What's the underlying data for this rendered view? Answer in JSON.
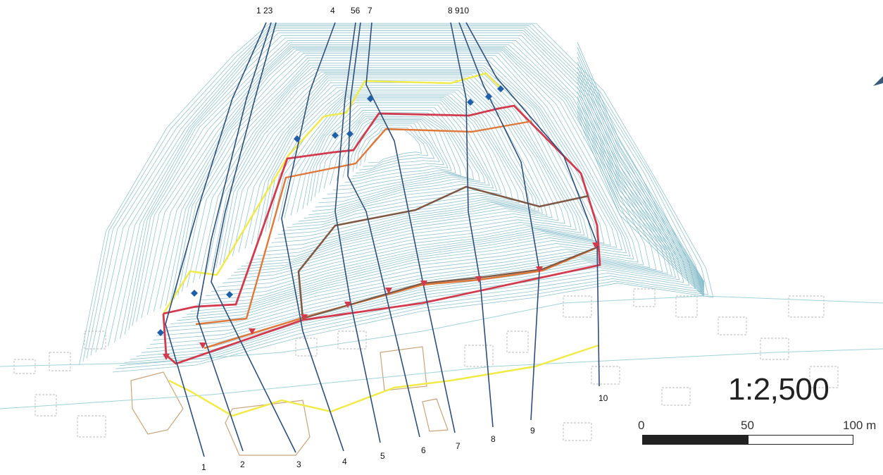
{
  "map": {
    "scale_ratio": "1:2,500",
    "scale_bar": {
      "ticks": [
        "0",
        "50",
        "100 m"
      ]
    },
    "top_labels": {
      "a": "1 23",
      "b": "4",
      "c": "56",
      "d": "7",
      "e": "8 910"
    },
    "bottom_labels": [
      "1",
      "2",
      "3",
      "4",
      "5",
      "6",
      "7",
      "8",
      "9",
      "10"
    ],
    "colors": {
      "contour": "#7fb9c6",
      "profile_line": "#2f4f7a",
      "boundary_red": "#d23a4e",
      "boundary_orange": "#e0783a",
      "boundary_brown": "#7e5a46",
      "boundary_yellow": "#f0ea4a",
      "marker_blue": "#1f5fa8",
      "building": "#c9a57b"
    }
  }
}
